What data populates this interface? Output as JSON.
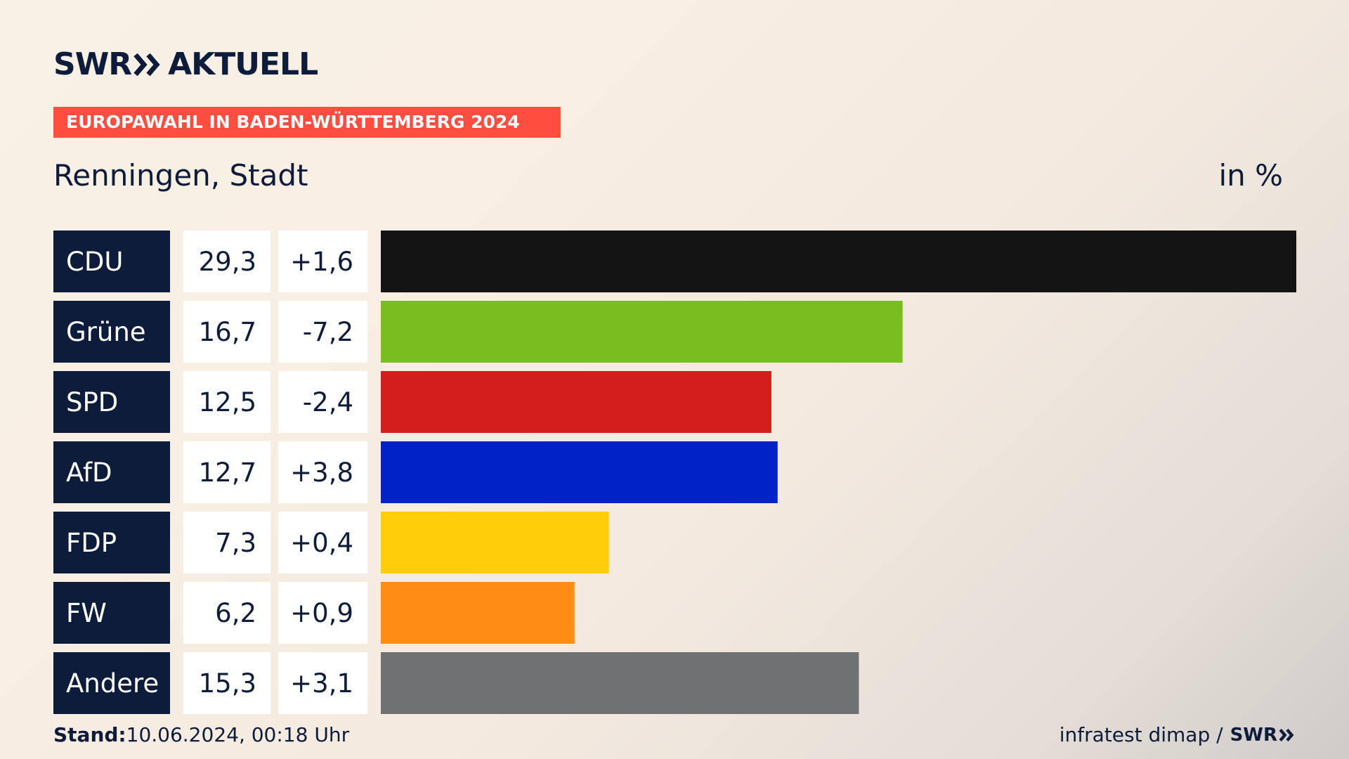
{
  "brand": {
    "left_text": "SWR",
    "right_text": "AKTUELL",
    "chevron_icon": "double-chevron-right-icon",
    "color": "#0c1c3a"
  },
  "banner": {
    "text": "EUROPAWAHL IN BADEN-WÜRTTEMBERG 2024",
    "color": "#ff4d40"
  },
  "region": "Renningen, Stadt",
  "unit": "in %",
  "footer": {
    "stand_label": "Stand:",
    "stand_value": "10.06.2024, 00:18 Uhr",
    "source": "infratest dimap /",
    "source_brand": "SWR",
    "chevron_icon": "double-chevron-right-icon"
  },
  "chart_data": {
    "type": "bar",
    "orientation": "horizontal",
    "categories": [
      "CDU",
      "Grüne",
      "SPD",
      "AfD",
      "FDP",
      "FW",
      "Andere"
    ],
    "values": [
      29.3,
      16.7,
      12.5,
      12.7,
      7.3,
      6.2,
      15.3
    ],
    "value_labels": [
      "29,3",
      "16,7",
      "12,5",
      "12,7",
      "7,3",
      "6,2",
      "15,3"
    ],
    "changes": [
      1.6,
      -7.2,
      -2.4,
      3.8,
      0.4,
      0.9,
      3.1
    ],
    "change_labels": [
      "+1,6",
      "-7,2",
      "-2,4",
      "+3,8",
      "+0,4",
      "+0,9",
      "+3,1"
    ],
    "colors": [
      "#141414",
      "#79be1e",
      "#d41e1e",
      "#0022c6",
      "#ffcd09",
      "#ff8c14",
      "#707173"
    ],
    "label_box_color": "#0c1c3a",
    "xlim": [
      0,
      29.3
    ]
  }
}
